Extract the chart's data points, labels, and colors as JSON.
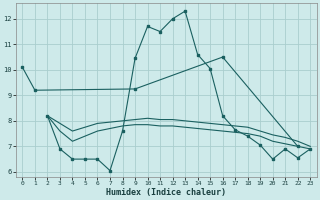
{
  "xlabel": "Humidex (Indice chaleur)",
  "bg_color": "#ceeaea",
  "grid_color": "#aacece",
  "line_color": "#1a6060",
  "xlim": [
    -0.5,
    23.5
  ],
  "ylim": [
    5.8,
    12.6
  ],
  "yticks": [
    6,
    7,
    8,
    9,
    10,
    11,
    12
  ],
  "xticks": [
    0,
    1,
    2,
    3,
    4,
    5,
    6,
    7,
    8,
    9,
    10,
    11,
    12,
    13,
    14,
    15,
    16,
    17,
    18,
    19,
    20,
    21,
    22,
    23
  ],
  "series": {
    "line1_x": [
      0,
      1,
      9,
      16,
      22
    ],
    "line1_y": [
      10.1,
      9.2,
      9.25,
      10.5,
      7.0
    ],
    "line2_x": [
      2,
      3,
      4,
      5,
      6,
      7,
      8,
      9,
      10,
      11,
      12,
      13,
      14,
      15,
      16,
      17,
      18,
      19,
      20,
      21,
      22,
      23
    ],
    "line2_y": [
      8.2,
      6.9,
      6.5,
      6.5,
      6.5,
      6.05,
      7.6,
      10.45,
      11.7,
      11.5,
      12.0,
      12.3,
      10.6,
      10.05,
      8.2,
      7.65,
      7.4,
      7.05,
      6.5,
      6.9,
      6.55,
      6.9
    ],
    "line3_x": [
      2,
      3,
      4,
      5,
      6,
      7,
      8,
      9,
      10,
      11,
      12,
      13,
      14,
      15,
      16,
      17,
      18,
      19,
      20,
      21,
      22,
      23
    ],
    "line3_y": [
      8.2,
      7.6,
      7.2,
      7.4,
      7.6,
      7.7,
      7.8,
      7.85,
      7.85,
      7.8,
      7.8,
      7.75,
      7.7,
      7.65,
      7.6,
      7.55,
      7.5,
      7.4,
      7.2,
      7.1,
      7.0,
      6.9
    ],
    "line4_x": [
      2,
      3,
      4,
      5,
      6,
      7,
      8,
      9,
      10,
      11,
      12,
      13,
      14,
      15,
      16,
      17,
      18,
      19,
      20,
      21,
      22,
      23
    ],
    "line4_y": [
      8.2,
      7.9,
      7.6,
      7.75,
      7.9,
      7.95,
      8.0,
      8.05,
      8.1,
      8.05,
      8.05,
      8.0,
      7.95,
      7.9,
      7.85,
      7.8,
      7.75,
      7.6,
      7.45,
      7.35,
      7.2,
      7.0
    ]
  }
}
